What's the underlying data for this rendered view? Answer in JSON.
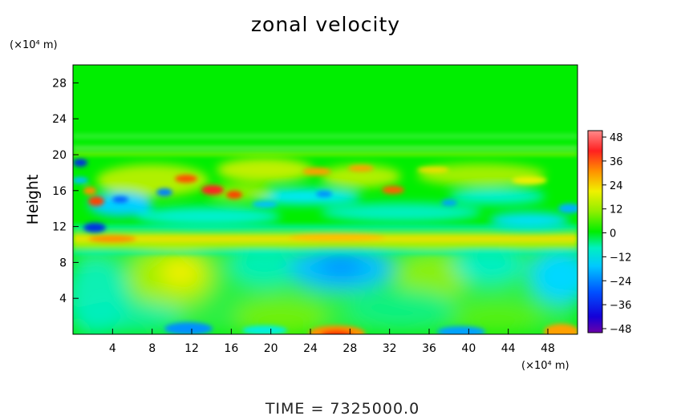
{
  "chart_data": {
    "type": "heatmap",
    "title": "zonal velocity",
    "ylabel": "Height",
    "xunit": "(×10⁴ m)",
    "yunit": "(×10⁴ m)",
    "xlim": [
      0,
      51
    ],
    "ylim": [
      0,
      30
    ],
    "xticks": [
      "4",
      "8",
      "12",
      "16",
      "20",
      "24",
      "28",
      "32",
      "36",
      "40",
      "44",
      "48"
    ],
    "yticks": [
      "4",
      "8",
      "12",
      "16",
      "20",
      "24",
      "28"
    ],
    "colorbar": {
      "min": -48,
      "max": 48,
      "ticks": [
        "48",
        "36",
        "24",
        "12",
        "0",
        "−12",
        "−24",
        "−36",
        "−48"
      ]
    },
    "footer": "TIME  =  7325000.0",
    "colors": {
      "background": "#00ee00",
      "positive": "#ff2020",
      "negative": "#0020e0"
    }
  }
}
